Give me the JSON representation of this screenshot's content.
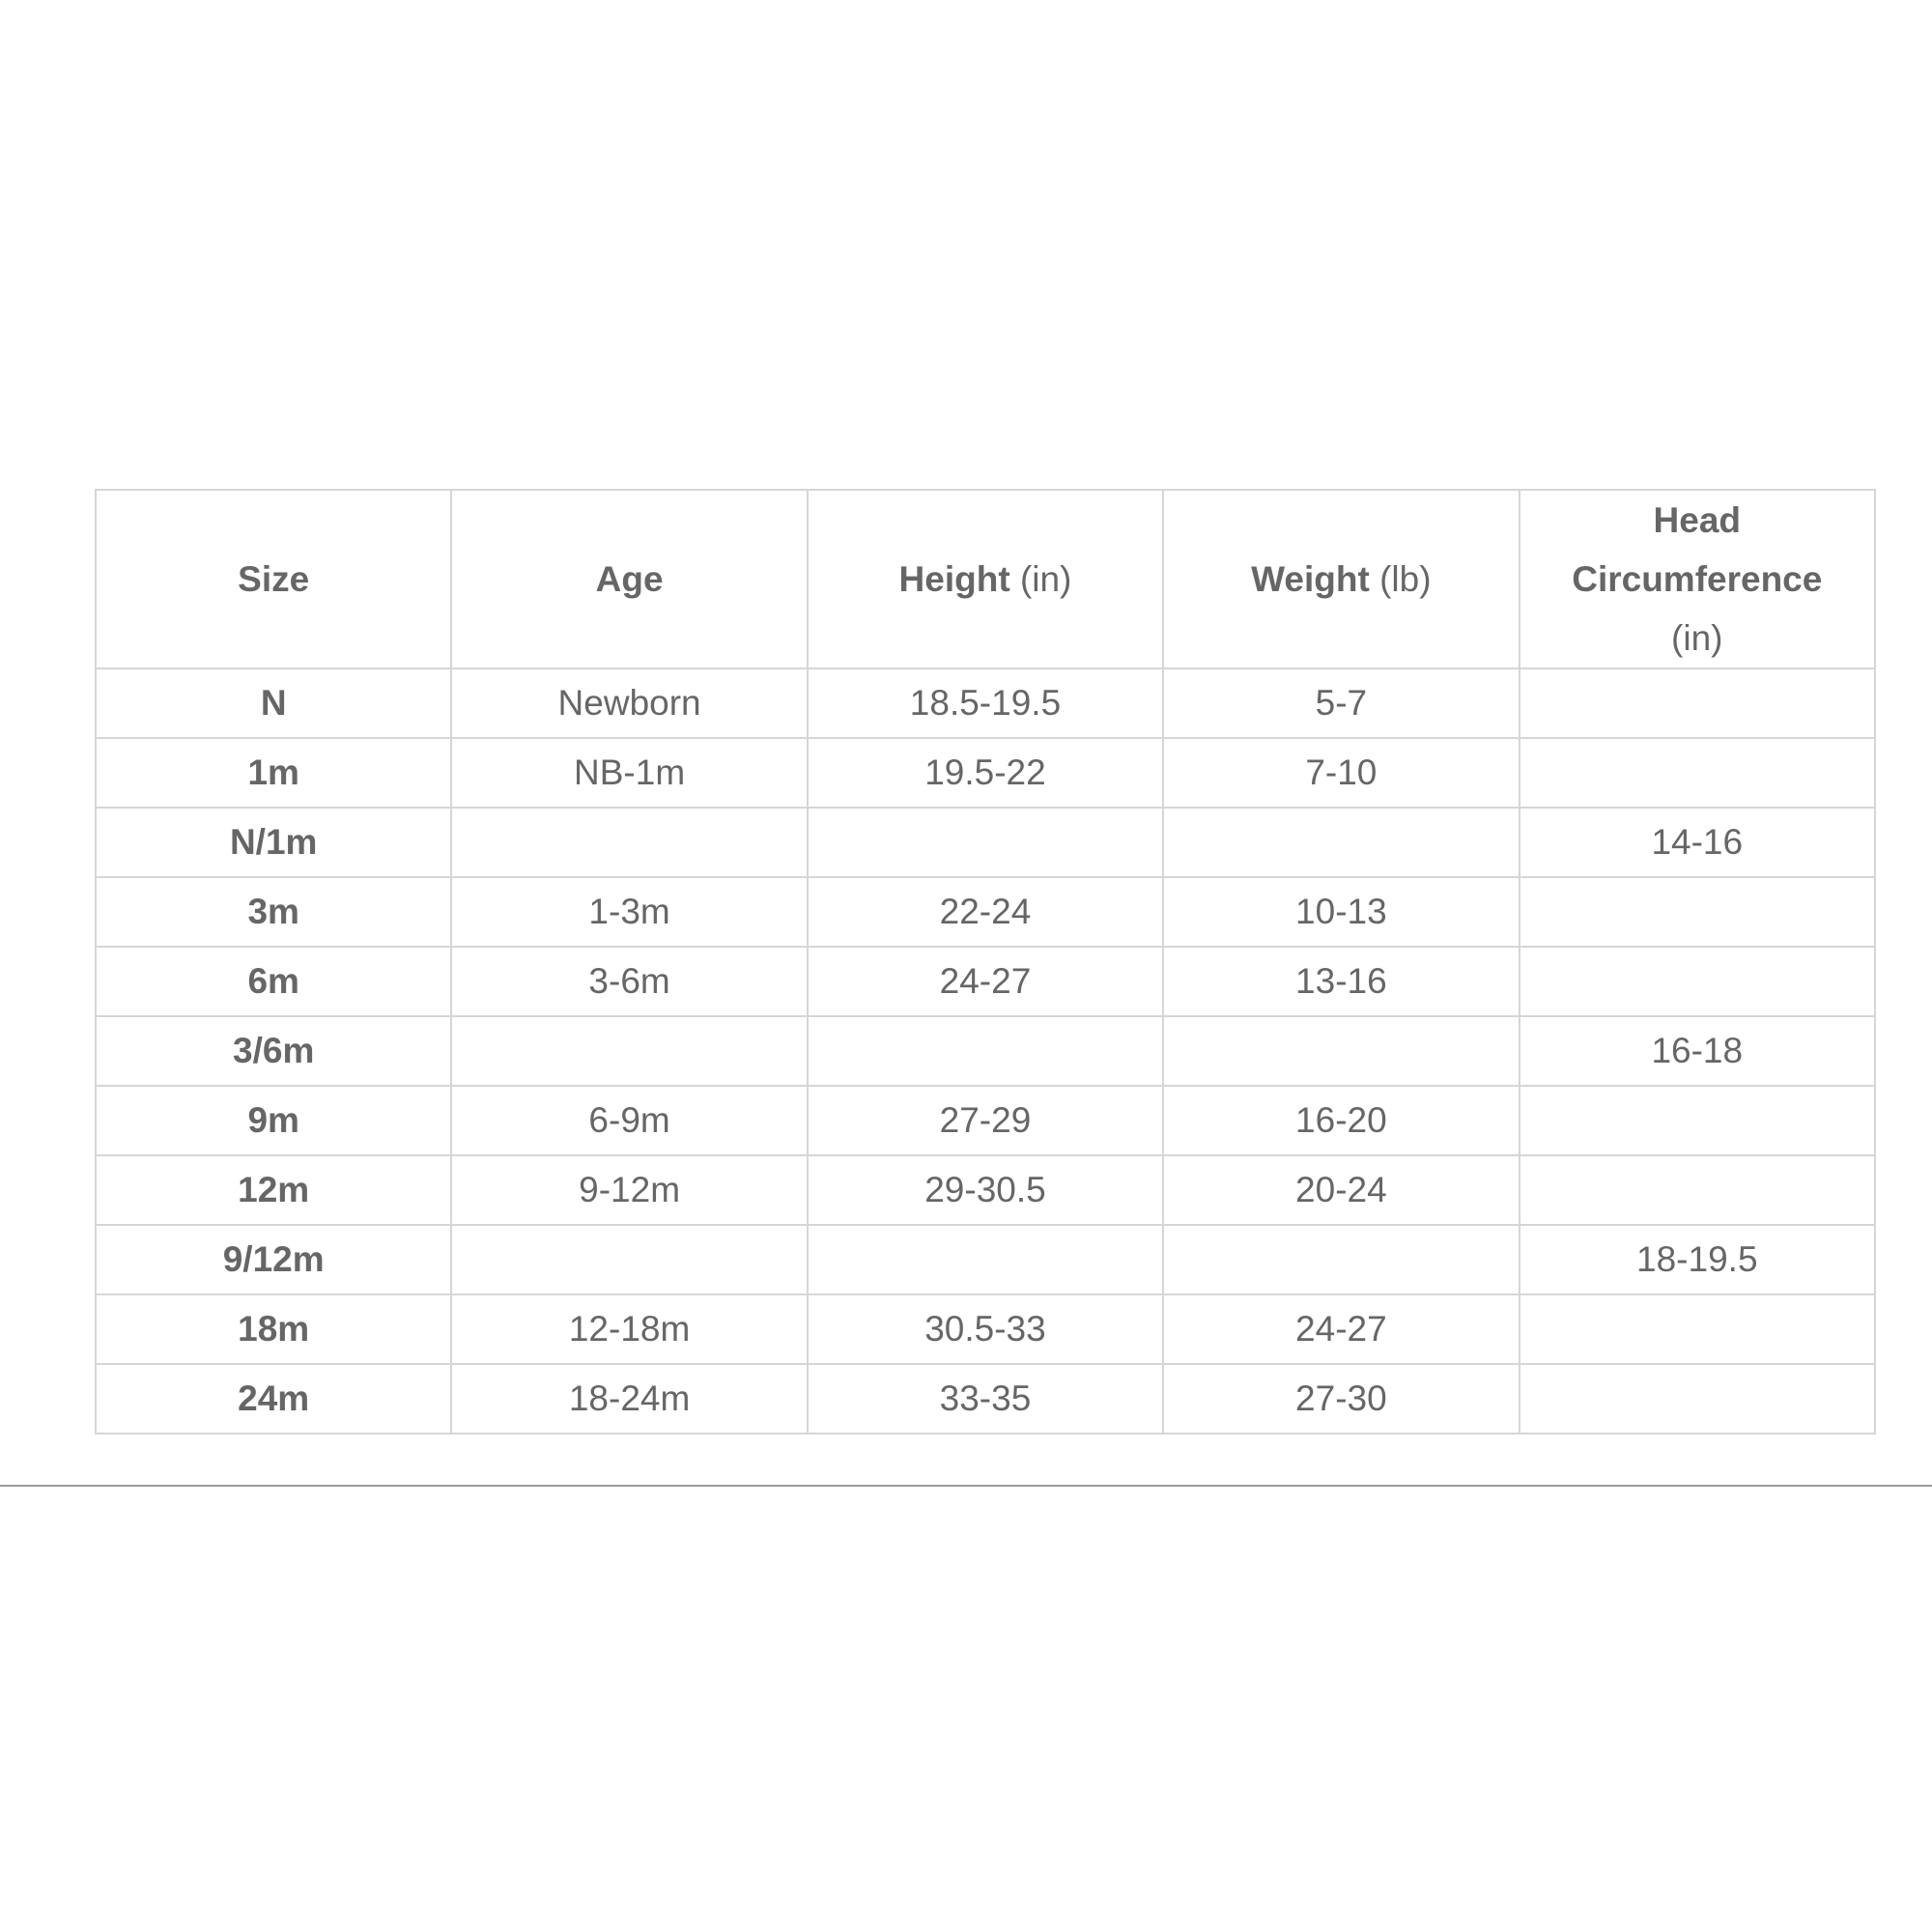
{
  "table": {
    "headers": [
      {
        "label": "Size",
        "unit": ""
      },
      {
        "label": "Age",
        "unit": ""
      },
      {
        "label": "Height",
        "unit": "(in)"
      },
      {
        "label": "Weight",
        "unit": "(lb)"
      },
      {
        "label": "Head Circumference",
        "unit": "(in)"
      }
    ],
    "rows": [
      [
        "N",
        "Newborn",
        "18.5-19.5",
        "5-7",
        ""
      ],
      [
        "1m",
        "NB-1m",
        "19.5-22",
        "7-10",
        ""
      ],
      [
        "N/1m",
        "",
        "",
        "",
        "14-16"
      ],
      [
        "3m",
        "1-3m",
        "22-24",
        "10-13",
        ""
      ],
      [
        "6m",
        "3-6m",
        "24-27",
        "13-16",
        ""
      ],
      [
        "3/6m",
        "",
        "",
        "",
        "16-18"
      ],
      [
        "9m",
        "6-9m",
        "27-29",
        "16-20",
        ""
      ],
      [
        "12m",
        "9-12m",
        "29-30.5",
        "20-24",
        ""
      ],
      [
        "9/12m",
        "",
        "",
        "",
        "18-19.5"
      ],
      [
        "18m",
        "12-18m",
        "30.5-33",
        "24-27",
        ""
      ],
      [
        "24m",
        "18-24m",
        "33-35",
        "27-30",
        ""
      ]
    ]
  }
}
